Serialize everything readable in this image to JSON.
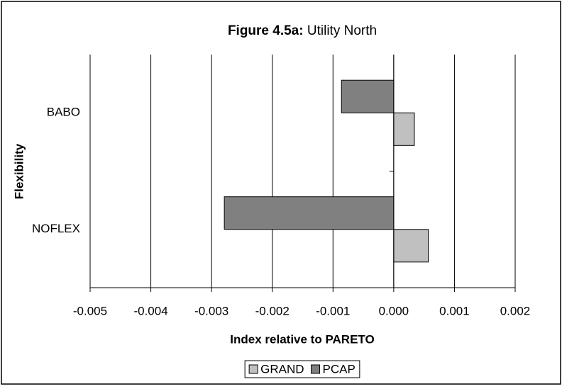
{
  "chart_data": {
    "type": "hbar",
    "title": [
      "Figure 4.5a:",
      "Utility North"
    ],
    "x_label": "Index relative to PARETO",
    "y_label": "Flexibility",
    "categories": [
      "BABO",
      "NOFLEX"
    ],
    "series": [
      {
        "name": "GRAND",
        "color": "#c0c0c0",
        "values": [
          0.00034,
          0.00057
        ]
      },
      {
        "name": "PCAP",
        "color": "#808080",
        "values": [
          -0.00086,
          -0.00279
        ]
      }
    ],
    "xlim": [
      -0.005,
      0.002
    ],
    "xticks": [
      -0.005,
      -0.004,
      -0.003,
      -0.002,
      -0.001,
      {
        "value": 0,
        "label": "0.000"
      },
      0.001,
      0.002
    ],
    "grid": true,
    "legend": "bottom"
  }
}
